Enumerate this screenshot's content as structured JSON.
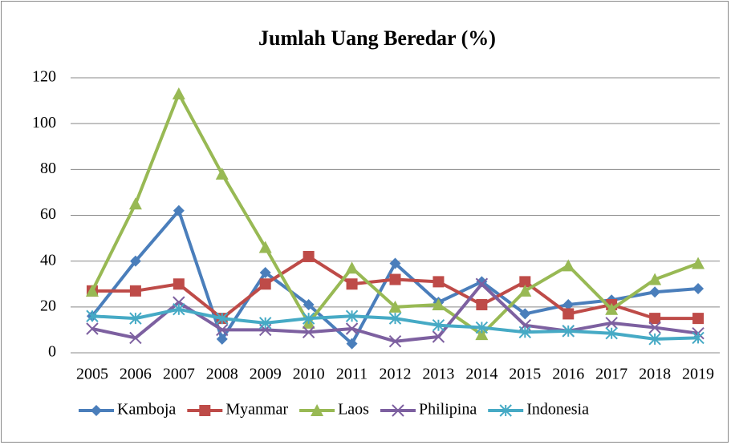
{
  "chart_data": {
    "type": "line",
    "title": "Jumlah Uang Beredar (%)",
    "categories": [
      "2005",
      "2006",
      "2007",
      "2008",
      "2009",
      "2010",
      "2011",
      "2012",
      "2013",
      "2014",
      "2015",
      "2016",
      "2017",
      "2018",
      "2019"
    ],
    "ylim": [
      0,
      120
    ],
    "yticks": [
      0,
      20,
      40,
      60,
      80,
      100,
      120
    ],
    "grid": true,
    "legend": "bottom",
    "series": [
      {
        "name": "Kamboja",
        "color": "#4a7ebb",
        "marker": "diamond",
        "values": [
          16,
          40,
          62,
          6,
          35,
          21,
          4,
          39,
          22,
          31,
          17,
          21,
          23,
          26.5,
          28
        ]
      },
      {
        "name": "Myanmar",
        "color": "#be4b48",
        "marker": "square",
        "values": [
          27,
          27,
          30,
          15,
          30,
          42,
          30,
          32,
          31,
          21,
          31,
          17,
          21,
          15,
          15
        ]
      },
      {
        "name": "Laos",
        "color": "#98b954",
        "marker": "triangle",
        "values": [
          27,
          65,
          113,
          78,
          46,
          13,
          37,
          20,
          21,
          8,
          27,
          38,
          19,
          32,
          39
        ]
      },
      {
        "name": "Philipina",
        "color": "#7d60a0",
        "marker": "x",
        "values": [
          10.5,
          6.5,
          22,
          10,
          10,
          9,
          10.5,
          5,
          7,
          30,
          12,
          9.5,
          13,
          11,
          8.5
        ]
      },
      {
        "name": "Indonesia",
        "color": "#46aac5",
        "marker": "star",
        "values": [
          16,
          15,
          19,
          15,
          13,
          15,
          16,
          15,
          12,
          11,
          9,
          9.5,
          8.5,
          6,
          6.5
        ]
      }
    ]
  }
}
